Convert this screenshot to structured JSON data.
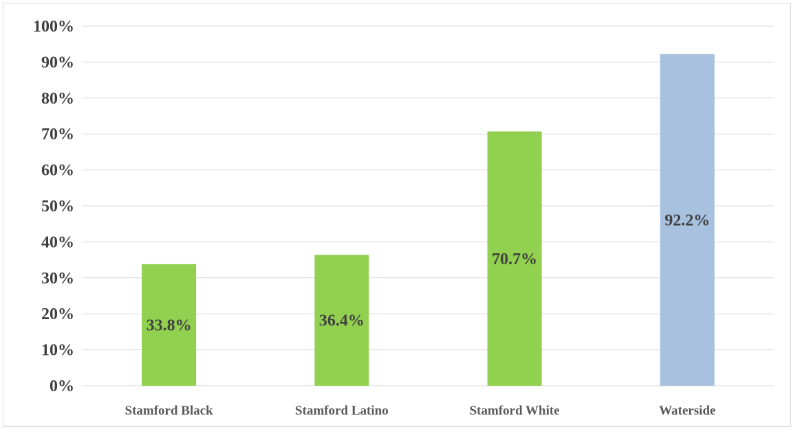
{
  "chart_data": {
    "type": "bar",
    "categories": [
      "Stamford Black",
      "Stamford Latino",
      "Stamford White",
      "Waterside"
    ],
    "values": [
      33.8,
      36.4,
      70.7,
      92.2
    ],
    "data_labels": [
      "33.8%",
      "36.4%",
      "70.7%",
      "92.2%"
    ],
    "colors": [
      "#92d050",
      "#92d050",
      "#92d050",
      "#a7c1df"
    ],
    "ylim": [
      0,
      100
    ],
    "y_ticks": [
      0,
      10,
      20,
      30,
      40,
      50,
      60,
      70,
      80,
      90,
      100
    ],
    "y_tick_labels": [
      "0%",
      "10%",
      "20%",
      "30%",
      "40%",
      "50%",
      "60%",
      "70%",
      "80%",
      "90%",
      "100%"
    ],
    "title": "",
    "xlabel": "",
    "ylabel": "",
    "grid": true,
    "legend": "none"
  }
}
